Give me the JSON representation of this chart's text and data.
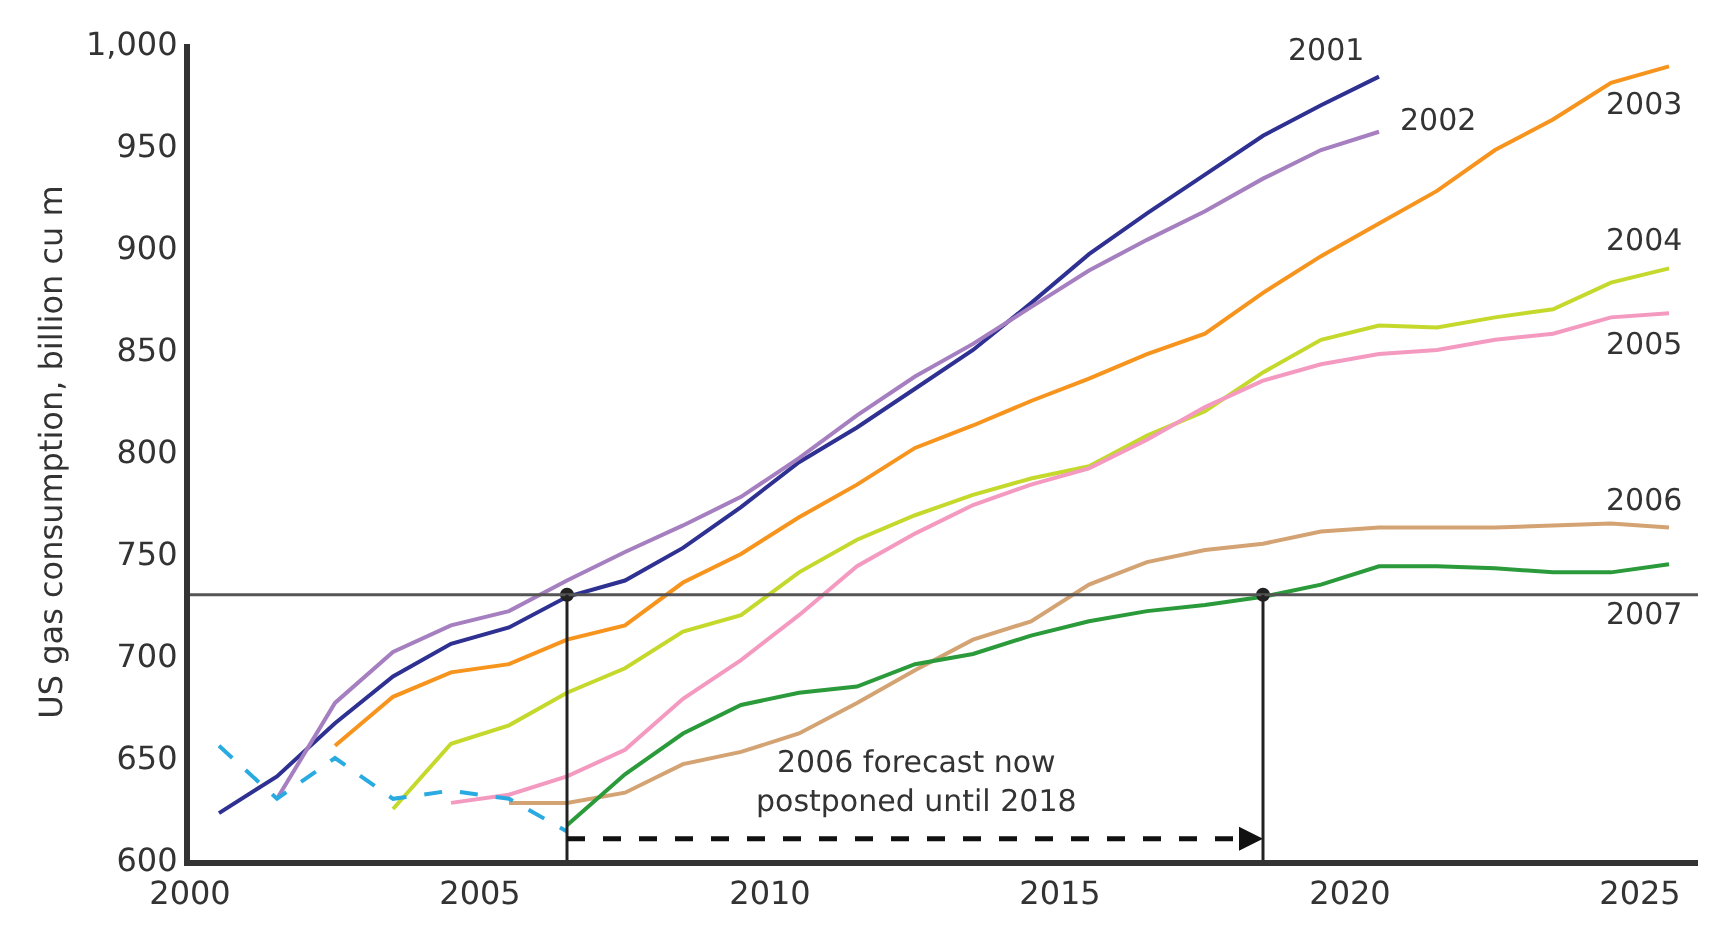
{
  "chart_data": {
    "type": "line",
    "ylabel": "US gas consumption, billion cu m",
    "xlim": [
      2000,
      2026
    ],
    "xticks": [
      2000,
      2005,
      2010,
      2015,
      2020,
      2025
    ],
    "ylim": [
      600,
      1000
    ],
    "yticks": [
      600,
      650,
      700,
      750,
      800,
      850,
      900,
      950,
      {
        "value": 1000,
        "label": "1,000"
      }
    ],
    "legend": false,
    "marker": "none",
    "series": [
      {
        "name": "2001",
        "color": "#2e3192",
        "x": [
          2000.5,
          2001.5,
          2002.5,
          2003.5,
          2004.5,
          2005.5,
          2006.5,
          2007.5,
          2008.5,
          2009.5,
          2010.5,
          2011.5,
          2012.5,
          2013.5,
          2014.5,
          2015.5,
          2016.5,
          2017.5,
          2018.5,
          2019.5,
          2020.5
        ],
        "values": [
          623,
          641,
          667,
          690,
          706,
          714,
          729,
          737,
          753,
          773,
          795,
          812,
          831,
          850,
          873,
          897,
          917,
          936,
          955,
          970,
          984
        ]
      },
      {
        "name": "2002",
        "color": "#a57fc0",
        "x": [
          2001.5,
          2002.5,
          2003.5,
          2004.5,
          2005.5,
          2006.5,
          2007.5,
          2008.5,
          2009.5,
          2010.5,
          2011.5,
          2012.5,
          2013.5,
          2014.5,
          2015.5,
          2016.5,
          2017.5,
          2018.5,
          2019.5,
          2020.5
        ],
        "values": [
          630,
          677,
          702,
          715,
          722,
          737,
          751,
          764,
          778,
          797,
          818,
          837,
          853,
          871,
          889,
          904,
          918,
          934,
          948,
          957
        ]
      },
      {
        "name": "2003",
        "color": "#f7941d",
        "x": [
          2002.5,
          2003.5,
          2004.5,
          2005.5,
          2006.5,
          2007.5,
          2008.5,
          2009.5,
          2010.5,
          2011.5,
          2012.5,
          2013.5,
          2014.5,
          2015.5,
          2016.5,
          2017.5,
          2018.5,
          2019.5,
          2020.5,
          2021.5,
          2022.5,
          2023.5,
          2024.5,
          2025.5
        ],
        "values": [
          656,
          680,
          692,
          696,
          708,
          715,
          736,
          750,
          768,
          784,
          802,
          813,
          825,
          836,
          848,
          858,
          878,
          896,
          912,
          928,
          948,
          963,
          981,
          989
        ]
      },
      {
        "name": "2004",
        "color": "#c5d92d",
        "x": [
          2003.5,
          2004.5,
          2005.5,
          2006.5,
          2007.5,
          2008.5,
          2009.5,
          2010.5,
          2011.5,
          2012.5,
          2013.5,
          2014.5,
          2015.5,
          2016.5,
          2017.5,
          2018.5,
          2019.5,
          2020.5,
          2021.5,
          2022.5,
          2023.5,
          2024.5,
          2025.5
        ],
        "values": [
          625,
          657,
          666,
          682,
          694,
          712,
          720,
          741,
          757,
          769,
          779,
          787,
          793,
          808,
          820,
          839,
          855,
          862,
          861,
          866,
          870,
          883,
          890
        ]
      },
      {
        "name": "2005",
        "color": "#f49ac1",
        "x": [
          2004.5,
          2005.5,
          2006.5,
          2007.5,
          2008.5,
          2009.5,
          2010.5,
          2011.5,
          2012.5,
          2013.5,
          2014.5,
          2015.5,
          2016.5,
          2017.5,
          2018.5,
          2019.5,
          2020.5,
          2021.5,
          2022.5,
          2023.5,
          2024.5,
          2025.5
        ],
        "values": [
          628,
          632,
          641,
          654,
          679,
          698,
          720,
          744,
          760,
          774,
          784,
          792,
          806,
          822,
          835,
          843,
          848,
          850,
          855,
          858,
          866,
          868
        ]
      },
      {
        "name": "2006",
        "color": "#d4a373",
        "x": [
          2005.5,
          2006.5,
          2007.5,
          2008.5,
          2009.5,
          2010.5,
          2011.5,
          2012.5,
          2013.5,
          2014.5,
          2015.5,
          2016.5,
          2017.5,
          2018.5,
          2019.5,
          2020.5,
          2021.5,
          2022.5,
          2023.5,
          2024.5,
          2025.5
        ],
        "values": [
          628,
          628,
          633,
          647,
          653,
          662,
          677,
          693,
          708,
          717,
          735,
          746,
          752,
          755,
          761,
          763,
          763,
          763,
          764,
          765,
          763
        ]
      },
      {
        "name": "2007",
        "color": "#2a9a3a",
        "x": [
          2006.5,
          2007.5,
          2008.5,
          2009.5,
          2010.5,
          2011.5,
          2012.5,
          2013.5,
          2014.5,
          2015.5,
          2016.5,
          2017.5,
          2018.5,
          2019.5,
          2020.5,
          2021.5,
          2022.5,
          2023.5,
          2024.5,
          2025.5
        ],
        "values": [
          617,
          642,
          662,
          676,
          682,
          685,
          696,
          701,
          710,
          717,
          722,
          725,
          729,
          735,
          744,
          744,
          743,
          741,
          741,
          745
        ]
      },
      {
        "color": "#29abe2",
        "line_style": "dashed",
        "x": [
          2000.5,
          2001.5,
          2002.5,
          2003.5,
          2004.5,
          2005.5,
          2006.5
        ],
        "values": [
          656,
          630,
          650,
          630,
          634,
          630,
          614
        ]
      }
    ],
    "ref_lines": [
      {
        "axis": "y",
        "value": 730,
        "color": "#555555"
      },
      {
        "axis": "x",
        "value": 2006.5,
        "color": "#222222"
      },
      {
        "axis": "x",
        "value": 2018.5,
        "color": "#222222"
      }
    ],
    "annotations": [
      "2006 forecast now\npostponed until 2018"
    ]
  }
}
